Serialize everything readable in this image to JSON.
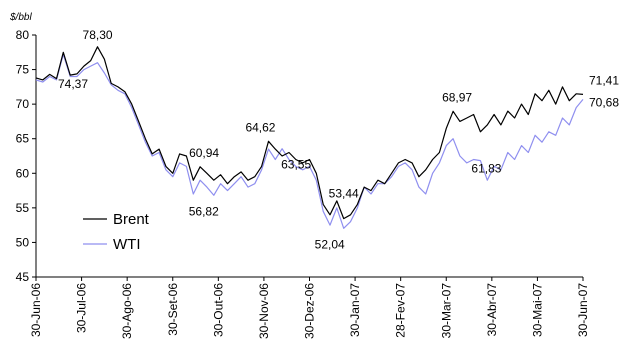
{
  "chart_data": {
    "type": "line",
    "y_unit_label": "$/bbl",
    "ylim": [
      45,
      80
    ],
    "y_ticks": [
      45,
      50,
      55,
      60,
      65,
      70,
      75,
      80
    ],
    "x_tick_labels": [
      "30-Jun-06",
      "30-Jul-06",
      "30-Ago-06",
      "30-Set-06",
      "30-Out-06",
      "30-Nov-06",
      "30-Dez-06",
      "30-Jan-07",
      "28-Fev-07",
      "30-Mar-07",
      "30-Abr-07",
      "30-Mai-07",
      "30-Jun-07"
    ],
    "legend": {
      "position": "bottom-left"
    },
    "colors": {
      "Brent": "#000000",
      "WTI": "#8f8fef",
      "axis": "#000000"
    },
    "x_index_note": "x values are months after 30-Jun-06",
    "series": [
      {
        "name": "Brent",
        "x": [
          0,
          0.15,
          0.3,
          0.45,
          0.6,
          0.75,
          0.9,
          1.05,
          1.2,
          1.35,
          1.5,
          1.65,
          1.8,
          1.95,
          2.1,
          2.25,
          2.4,
          2.55,
          2.7,
          2.85,
          3.0,
          3.15,
          3.3,
          3.45,
          3.6,
          3.75,
          3.9,
          4.05,
          4.2,
          4.35,
          4.5,
          4.65,
          4.8,
          4.95,
          5.1,
          5.25,
          5.4,
          5.55,
          5.7,
          5.85,
          6.0,
          6.15,
          6.3,
          6.45,
          6.6,
          6.75,
          6.9,
          7.05,
          7.2,
          7.35,
          7.5,
          7.65,
          7.8,
          7.95,
          8.1,
          8.25,
          8.4,
          8.55,
          8.7,
          8.85,
          9.0,
          9.15,
          9.3,
          9.45,
          9.6,
          9.75,
          9.9,
          10.05,
          10.2,
          10.35,
          10.5,
          10.65,
          10.8,
          10.95,
          11.1,
          11.25,
          11.4,
          11.55,
          11.7,
          11.85,
          12.0
        ],
        "values": [
          73.8,
          73.5,
          74.3,
          73.7,
          77.5,
          74.2,
          74.37,
          75.5,
          76.3,
          78.3,
          76.5,
          73.0,
          72.5,
          71.8,
          70.0,
          67.5,
          65.0,
          62.8,
          63.5,
          61.0,
          60.0,
          62.8,
          62.5,
          59.0,
          60.94,
          60.0,
          59.0,
          59.8,
          58.5,
          59.5,
          60.2,
          59.0,
          59.5,
          61.0,
          64.62,
          63.5,
          62.5,
          63.0,
          62.0,
          61.5,
          62.0,
          60.0,
          55.5,
          54.0,
          56.0,
          53.44,
          54.0,
          55.5,
          58.0,
          57.5,
          59.0,
          58.5,
          60.0,
          61.5,
          62.0,
          61.5,
          59.5,
          60.5,
          62.0,
          63.0,
          66.5,
          68.97,
          67.5,
          68.0,
          68.5,
          66.0,
          67.0,
          68.5,
          67.0,
          69.0,
          68.0,
          70.0,
          68.5,
          71.5,
          70.5,
          72.0,
          70.0,
          72.5,
          70.5,
          71.5,
          71.41
        ]
      },
      {
        "name": "WTI",
        "x": [
          0,
          0.15,
          0.3,
          0.45,
          0.6,
          0.75,
          0.9,
          1.05,
          1.2,
          1.35,
          1.5,
          1.65,
          1.8,
          1.95,
          2.1,
          2.25,
          2.4,
          2.55,
          2.7,
          2.85,
          3.0,
          3.15,
          3.3,
          3.45,
          3.6,
          3.75,
          3.9,
          4.05,
          4.2,
          4.35,
          4.5,
          4.65,
          4.8,
          4.95,
          5.1,
          5.25,
          5.4,
          5.55,
          5.7,
          5.85,
          6.0,
          6.15,
          6.3,
          6.45,
          6.6,
          6.75,
          6.9,
          7.05,
          7.2,
          7.35,
          7.5,
          7.65,
          7.8,
          7.95,
          8.1,
          8.25,
          8.4,
          8.55,
          8.7,
          8.85,
          9.0,
          9.15,
          9.3,
          9.45,
          9.6,
          9.75,
          9.9,
          10.05,
          10.2,
          10.35,
          10.5,
          10.65,
          10.8,
          10.95,
          11.1,
          11.25,
          11.4,
          11.55,
          11.7,
          11.85,
          12.0
        ],
        "values": [
          73.5,
          73.2,
          74.0,
          73.5,
          77.2,
          74.0,
          74.0,
          75.0,
          75.5,
          76.0,
          74.5,
          72.8,
          72.0,
          71.5,
          69.5,
          67.0,
          64.5,
          62.5,
          63.0,
          60.5,
          59.5,
          61.5,
          61.0,
          57.0,
          59.0,
          58.0,
          56.82,
          58.5,
          57.5,
          58.5,
          59.5,
          58.0,
          58.5,
          60.5,
          63.5,
          62.0,
          63.55,
          62.0,
          61.0,
          60.5,
          61.0,
          59.0,
          54.5,
          52.5,
          55.0,
          52.04,
          53.0,
          55.0,
          58.0,
          57.0,
          58.5,
          58.5,
          59.5,
          61.0,
          61.5,
          60.5,
          58.0,
          57.0,
          60.0,
          61.5,
          64.0,
          65.0,
          62.5,
          61.5,
          62.0,
          61.83,
          59.0,
          61.0,
          60.5,
          63.0,
          62.0,
          64.0,
          63.0,
          65.5,
          64.5,
          66.0,
          65.5,
          68.0,
          67.0,
          69.5,
          70.68
        ]
      }
    ],
    "annotations": [
      {
        "text": "78,30",
        "x": 1.35,
        "y": 78.3
      },
      {
        "text": "74,37",
        "x": 0.9,
        "y": 74.37
      },
      {
        "text": "60,94",
        "x": 3.6,
        "y": 60.94
      },
      {
        "text": "56,82",
        "x": 3.9,
        "y": 56.82
      },
      {
        "text": "64,62",
        "x": 5.1,
        "y": 64.62
      },
      {
        "text": "63,55",
        "x": 5.4,
        "y": 63.55
      },
      {
        "text": "53,44",
        "x": 6.75,
        "y": 53.44
      },
      {
        "text": "52,04",
        "x": 6.75,
        "y": 52.04
      },
      {
        "text": "68,97",
        "x": 9.15,
        "y": 68.97
      },
      {
        "text": "61,83",
        "x": 9.75,
        "y": 61.83
      },
      {
        "text": "71,41",
        "x": 12.0,
        "y": 71.41
      },
      {
        "text": "70,68",
        "x": 12.0,
        "y": 70.68
      }
    ]
  }
}
